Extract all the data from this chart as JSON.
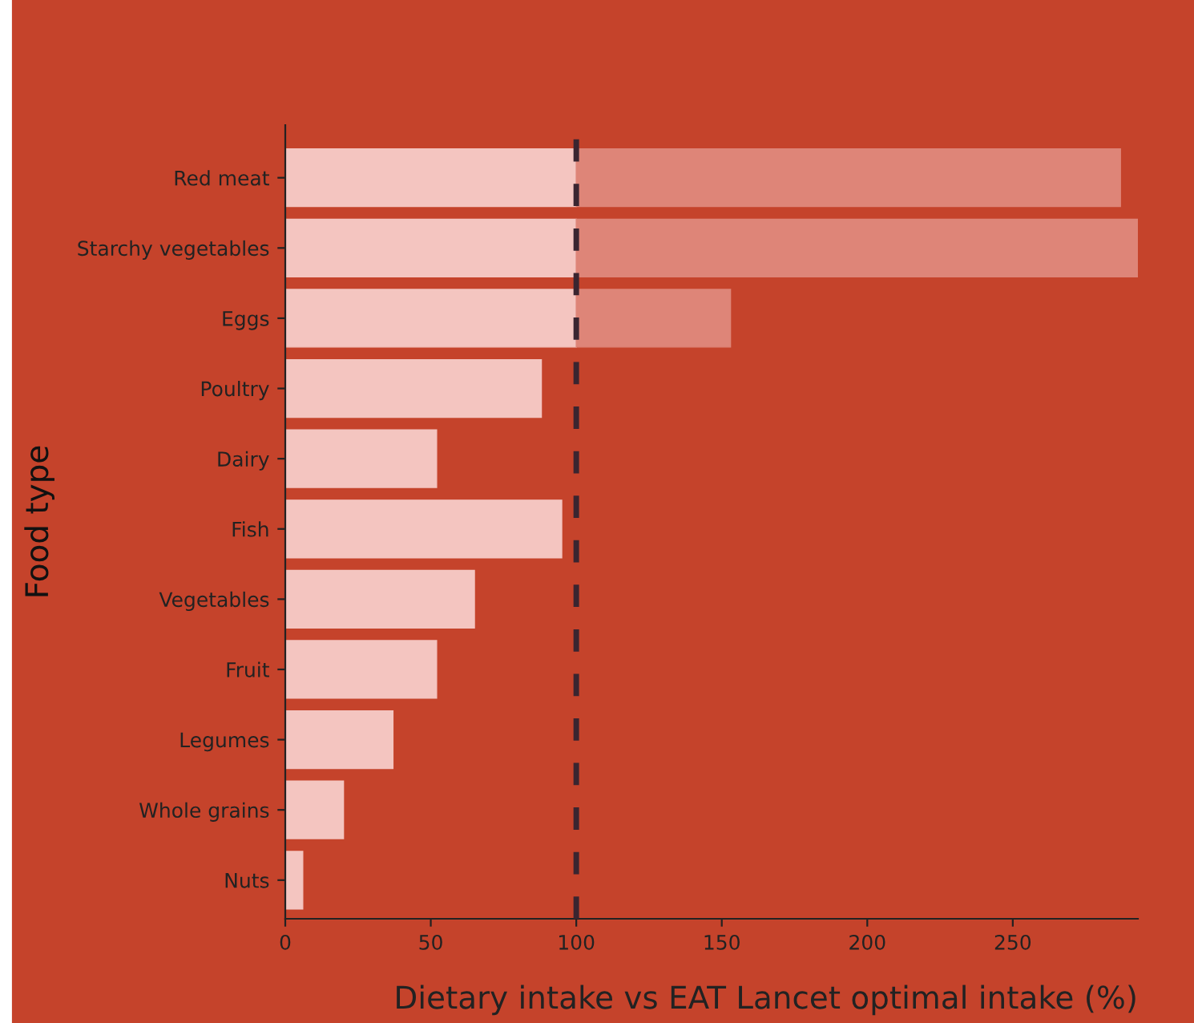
{
  "chart_data": {
    "type": "bar",
    "orientation": "horizontal",
    "stacked": true,
    "xlabel": "Dietary intake vs EAT Lancet optimal intake (%)",
    "ylabel": "Food type",
    "categories": [
      "Red meat",
      "Starchy vegetables",
      "Eggs",
      "Poultry",
      "Dairy",
      "Fish",
      "Vegetables",
      "Fruit",
      "Legumes",
      "Whole grains",
      "Nuts"
    ],
    "series": [
      {
        "color": "#f4c5c0",
        "values": [
          100,
          100,
          100,
          88,
          52,
          95,
          65,
          52,
          37,
          20,
          6
        ]
      },
      {
        "color": "#de8578",
        "values": [
          187,
          193,
          53,
          null,
          null,
          null,
          null,
          null,
          null,
          null,
          null
        ]
      }
    ],
    "xlim": [
      0,
      293
    ],
    "xticks": [
      0,
      50,
      100,
      150,
      200,
      250
    ],
    "ref_lines": [
      {
        "axis": "x",
        "value": 100,
        "color": "#3a2530",
        "line_style": "dashed"
      }
    ],
    "grid": false,
    "legend": false
  }
}
